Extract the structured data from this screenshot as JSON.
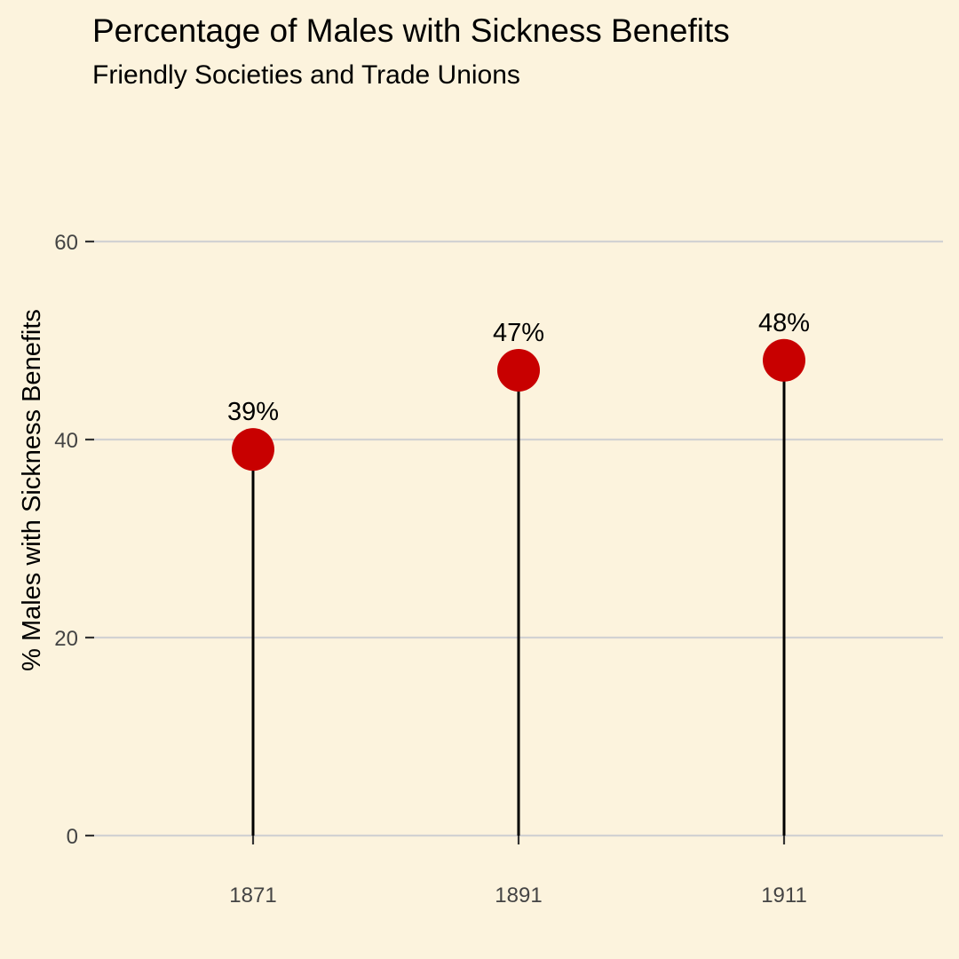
{
  "chart_data": {
    "type": "lollipop",
    "title": "Percentage of Males with Sickness Benefits",
    "subtitle": "Friendly Societies and Trade Unions",
    "xlabel": "",
    "ylabel": "% Males with Sickness Benefits",
    "categories": [
      "1871",
      "1891",
      "1911"
    ],
    "values": [
      39,
      47,
      48
    ],
    "data_labels": [
      "39%",
      "47%",
      "48%"
    ],
    "ylim": [
      0,
      60
    ],
    "yticks": [
      0,
      20,
      40,
      60
    ],
    "grid": "horizontal",
    "legend": "none",
    "colors": {
      "point": "#C80000",
      "stem": "#000000",
      "background": "#FCF3DD",
      "grid": "#D2D2D2"
    }
  }
}
